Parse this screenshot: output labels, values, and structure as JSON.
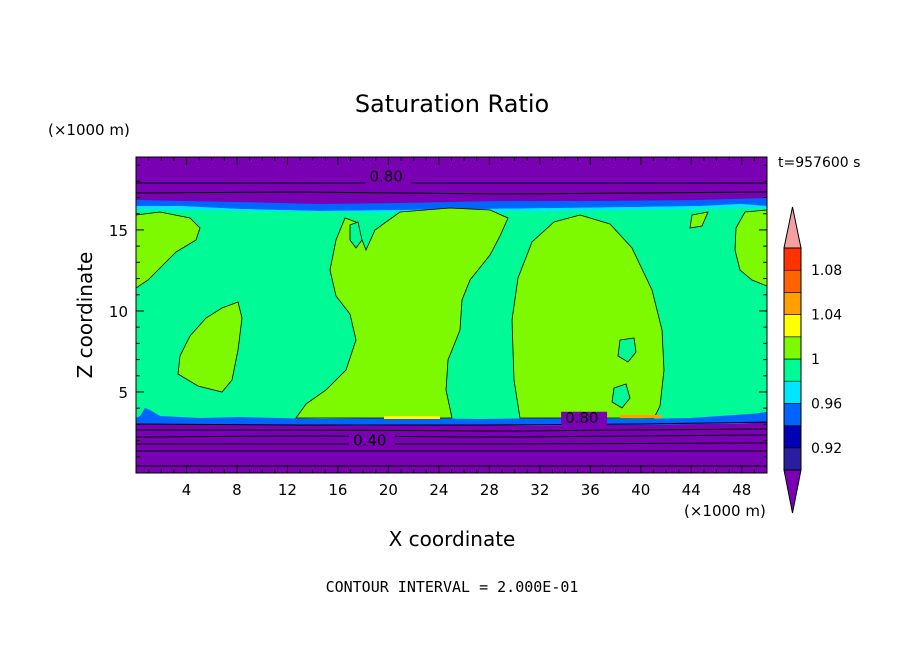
{
  "chart_data": {
    "type": "heatmap",
    "title": "Saturation Ratio",
    "xlabel": "X coordinate",
    "ylabel": "Z coordinate",
    "x_unit": "(×1000 m)",
    "y_unit": "(×1000 m)",
    "time_label": "t=957600 s",
    "footer": "CONTOUR INTERVAL = 2.000E-01",
    "xlim": [
      0,
      50
    ],
    "ylim": [
      0,
      19.5
    ],
    "x_ticks": [
      4,
      8,
      12,
      16,
      20,
      24,
      28,
      32,
      36,
      40,
      44,
      48
    ],
    "y_ticks": [
      5,
      10,
      15
    ],
    "contour_labels": [
      {
        "text": "0.80",
        "x": 18.5,
        "z": 18.0
      },
      {
        "text": "0.80",
        "x": 34.0,
        "z": 3.1
      },
      {
        "text": "0.40",
        "x": 17.2,
        "z": 1.7
      }
    ],
    "colorbar": {
      "levels": [
        "0.92",
        "0.96",
        "1",
        "1.04",
        "1.08"
      ],
      "colors": [
        "#7a00b4",
        "#2a1ea0",
        "#0000b4",
        "#0064ff",
        "#00e6ff",
        "#00fa96",
        "#7dfa00",
        "#ffff00",
        "#ffa000",
        "#ff6400",
        "#ff3200",
        "#f5a0a0"
      ]
    },
    "regions": {
      "dry_color": "#7a00b4",
      "near_sat_color": "#00fa96",
      "sat_color": "#7dfa00"
    }
  }
}
